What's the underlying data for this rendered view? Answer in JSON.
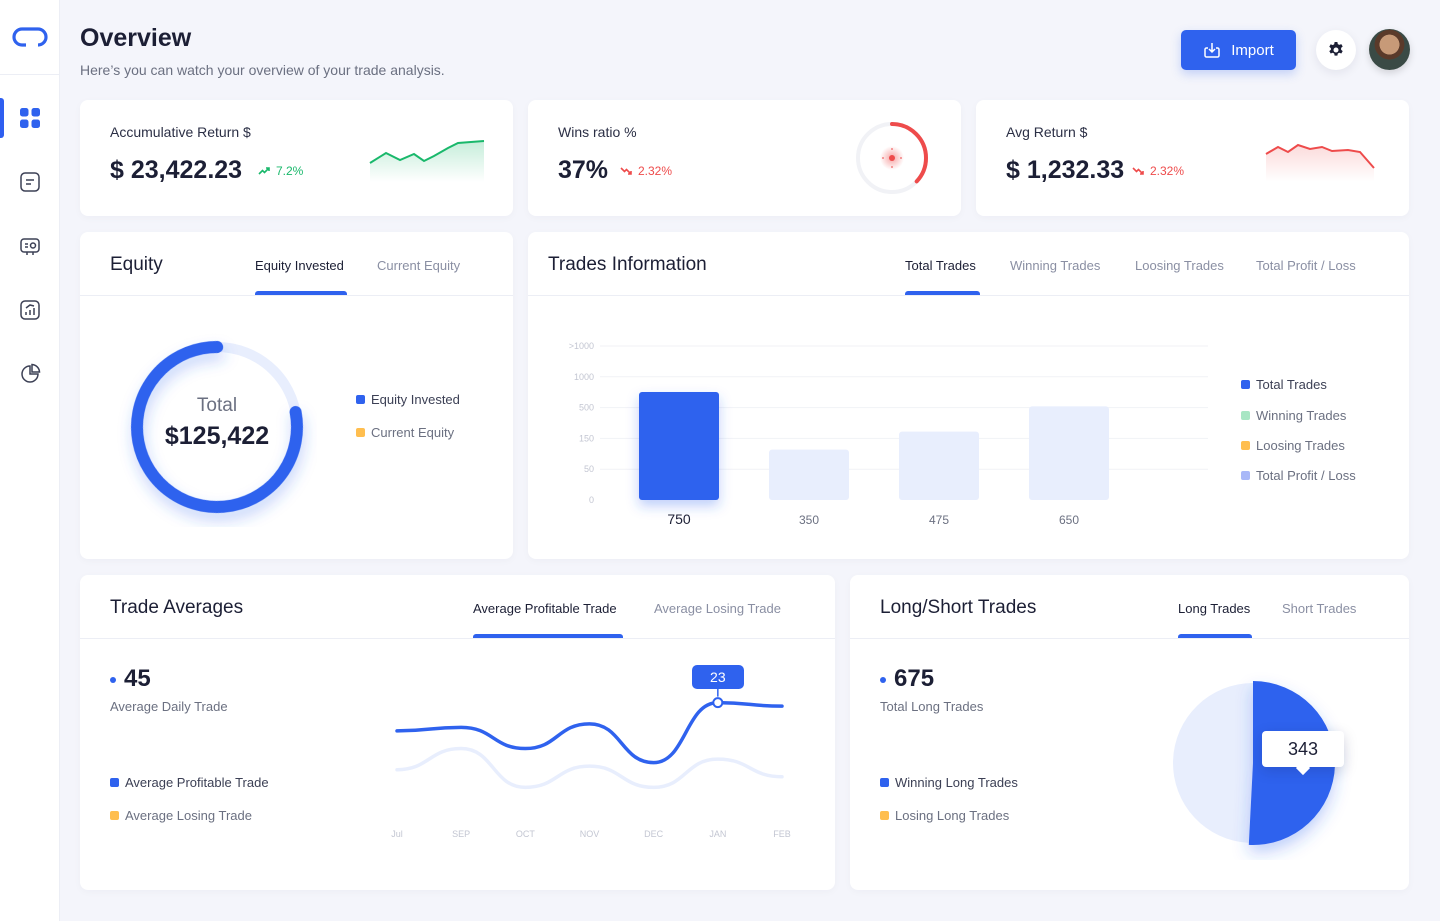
{
  "header": {
    "title": "Overview",
    "subtitle": "Here’s you can watch your overview of your trade analysis.",
    "import_label": "Import"
  },
  "sidebar": {
    "items": [
      {
        "name": "dashboard",
        "icon": "dashboard-grid-icon",
        "active": true
      },
      {
        "name": "journal",
        "icon": "journal-note-icon",
        "active": false
      },
      {
        "name": "trades",
        "icon": "trade-exchange-icon",
        "active": false
      },
      {
        "name": "analytics",
        "icon": "analytics-chart-icon",
        "active": false
      },
      {
        "name": "reports",
        "icon": "pie-chart-icon",
        "active": false
      }
    ]
  },
  "stats": {
    "accumulative": {
      "label": "Accumulative Return $",
      "value": "$ 23,422.23",
      "change": "7.2%",
      "trend": "up"
    },
    "wins": {
      "label": "Wins ratio %",
      "value": "37%",
      "change": "2.32%",
      "trend": "down",
      "ratio": 0.37
    },
    "avg": {
      "label": "Avg Return $",
      "value": "$ 1,232.33",
      "change": "2.32%",
      "trend": "down"
    }
  },
  "equity": {
    "title": "Equity",
    "tabs": [
      "Equity Invested",
      "Current Equity"
    ],
    "active_tab": 0,
    "center_label": "Total",
    "center_value": "$125,422",
    "legend": [
      {
        "label": "Equity Invested",
        "color": "#2f62ee"
      },
      {
        "label": "Current Equity",
        "color": "#ffbe4f"
      }
    ],
    "invested_fraction": 0.78
  },
  "trades_info": {
    "title": "Trades Information",
    "tabs": [
      "Total Trades",
      "Winning Trades",
      "Loosing Trades",
      "Total Profit / Loss"
    ],
    "active_tab": 0,
    "legend": [
      {
        "label": "Total Trades",
        "color": "#2f62ee"
      },
      {
        "label": "Winning Trades",
        "color": "#a8e6c4"
      },
      {
        "label": "Loosing Trades",
        "color": "#ffbe4f"
      },
      {
        "label": "Total Profit / Loss",
        "color": "#a9b8f8"
      }
    ]
  },
  "chart_data": [
    {
      "type": "bar",
      "categories": [
        "750",
        "350",
        "475",
        "650"
      ],
      "values": [
        750,
        350,
        475,
        650
      ],
      "highlighted": 0,
      "y_ticks": [
        ">1000",
        "1000",
        "500",
        "150",
        "50",
        "0"
      ],
      "xlabel": "",
      "ylabel": ""
    },
    {
      "type": "line",
      "x": [
        "Jul",
        "SEP",
        "OCT",
        "NOV",
        "DEC",
        "JAN",
        "FEB"
      ],
      "series": [
        {
          "values": [
            15,
            16,
            10,
            17,
            6,
            23,
            22
          ]
        },
        {
          "values": [
            4,
            10,
            -1,
            5,
            -1,
            7,
            2
          ]
        }
      ],
      "ylim": [
        -6,
        28
      ],
      "tooltip": {
        "label": "23",
        "series": 0,
        "index": 5
      }
    },
    {
      "type": "pie",
      "slices": [
        {
          "label": "Winning Long Trades",
          "value": 343
        },
        {
          "label": "Losing Long Trades",
          "value": 332
        }
      ],
      "tooltip": "343"
    }
  ],
  "averages": {
    "title": "Trade Averages",
    "tabs": [
      "Average Profitable Trade",
      "Average Losing Trade"
    ],
    "active_tab": 0,
    "metric_value": "45",
    "metric_label": "Average Daily Trade",
    "legend": [
      {
        "label": "Average Profitable Trade",
        "color": "#2f62ee"
      },
      {
        "label": "Average Losing Trade",
        "color": "#ffbe4f"
      }
    ]
  },
  "long_short": {
    "title": "Long/Short Trades",
    "tabs": [
      "Long Trades",
      "Short Trades"
    ],
    "active_tab": 0,
    "metric_value": "675",
    "metric_label": "Total Long Trades",
    "legend": [
      {
        "label": "Winning Long Trades",
        "color": "#2f62ee"
      },
      {
        "label": "Losing Long Trades",
        "color": "#ffbe4f"
      }
    ]
  },
  "colors": {
    "accent": "#2f62ee",
    "accent_light": "#e8eefd",
    "up": "#19b86b",
    "down": "#ee4b4b"
  }
}
